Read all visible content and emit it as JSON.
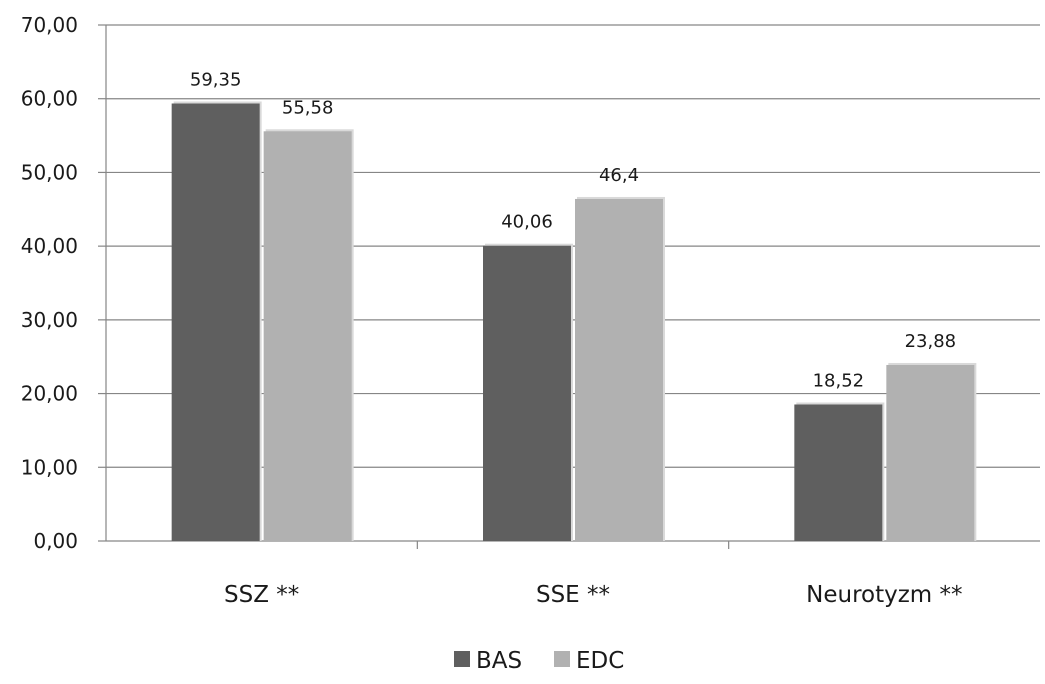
{
  "chart_data": {
    "type": "bar",
    "categories": [
      "SSZ **",
      "SSE **",
      "Neurotyzm **"
    ],
    "series": [
      {
        "name": "BAS",
        "values": [
          59.35,
          40.06,
          18.52
        ],
        "labels": [
          "59,35",
          "40,06",
          "18,52"
        ],
        "color": "#5f5f5f"
      },
      {
        "name": "EDC",
        "values": [
          55.58,
          46.4,
          23.88
        ],
        "labels": [
          "55,58",
          "46,4",
          "23,88"
        ],
        "color": "#b1b1b1"
      }
    ],
    "y_ticks": [
      0,
      10,
      20,
      30,
      40,
      50,
      60,
      70
    ],
    "y_tick_labels": [
      "0,00",
      "10,00",
      "20,00",
      "30,00",
      "40,00",
      "50,00",
      "60,00",
      "70,00"
    ],
    "ylim": [
      0,
      70
    ],
    "grid": true,
    "legend_position": "bottom",
    "title": "",
    "xlabel": "",
    "ylabel": ""
  }
}
